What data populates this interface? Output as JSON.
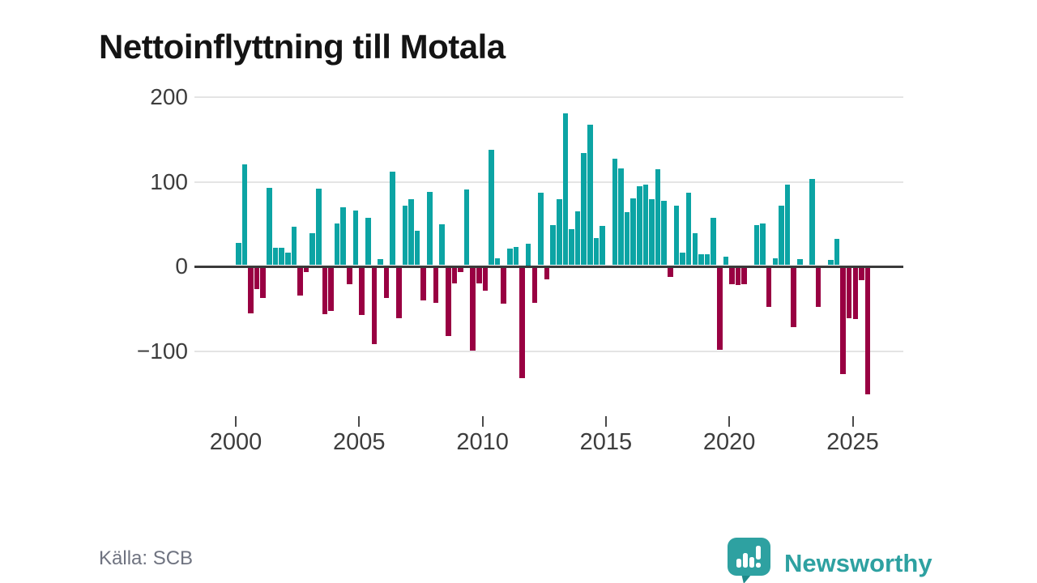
{
  "title": "Nettoinflyttning till Motala",
  "source": "Källa: SCB",
  "brand": {
    "name": "Newsworthy"
  },
  "colors": {
    "positive_bar": "#0ca4a4",
    "negative_bar": "#990042",
    "zero_axis": "#3a3a3a",
    "gridline": "#e4e4e4",
    "logo_teal": "#2ea1a1",
    "logo_teal_dark": "#1f8a8a"
  },
  "chart_data": {
    "type": "bar",
    "title": "Nettoinflyttning till Motala",
    "xlabel": "",
    "ylabel": "",
    "ylim": [
      -175,
      215
    ],
    "grid": "horizontal",
    "legend": "none",
    "bar_color_rule": "teal when positive, dark crimson when negative",
    "yticks": [
      {
        "value": 200,
        "label": "200"
      },
      {
        "value": 100,
        "label": "100"
      },
      {
        "value": 0,
        "label": "0"
      },
      {
        "value": -100,
        "label": "−100"
      }
    ],
    "xticks": [
      {
        "year": 2000,
        "label": "2000"
      },
      {
        "year": 2005,
        "label": "2005"
      },
      {
        "year": 2010,
        "label": "2010"
      },
      {
        "year": 2015,
        "label": "2015"
      },
      {
        "year": 2020,
        "label": "2020"
      },
      {
        "year": 2025,
        "label": "2025"
      }
    ],
    "periods": [
      "2000Q1",
      "2000Q2",
      "2000Q3",
      "2000Q4",
      "2001Q1",
      "2001Q2",
      "2001Q3",
      "2001Q4",
      "2002Q1",
      "2002Q2",
      "2002Q3",
      "2002Q4",
      "2003Q1",
      "2003Q2",
      "2003Q3",
      "2003Q4",
      "2004Q1",
      "2004Q2",
      "2004Q3",
      "2004Q4",
      "2005Q1",
      "2005Q2",
      "2005Q3",
      "2005Q4",
      "2006Q1",
      "2006Q2",
      "2006Q3",
      "2006Q4",
      "2007Q1",
      "2007Q2",
      "2007Q3",
      "2007Q4",
      "2008Q1",
      "2008Q2",
      "2008Q3",
      "2008Q4",
      "2009Q1",
      "2009Q2",
      "2009Q3",
      "2009Q4",
      "2010Q1",
      "2010Q2",
      "2010Q3",
      "2010Q4",
      "2011Q1",
      "2011Q2",
      "2011Q3",
      "2011Q4",
      "2012Q1",
      "2012Q2",
      "2012Q3",
      "2012Q4",
      "2013Q1",
      "2013Q2",
      "2013Q3",
      "2013Q4",
      "2014Q1",
      "2014Q2",
      "2014Q3",
      "2014Q4",
      "2015Q1",
      "2015Q2",
      "2015Q3",
      "2015Q4",
      "2016Q1",
      "2016Q2",
      "2016Q3",
      "2016Q4",
      "2017Q1",
      "2017Q2",
      "2017Q3",
      "2017Q4",
      "2018Q1",
      "2018Q2",
      "2018Q3",
      "2018Q4",
      "2019Q1",
      "2019Q2",
      "2019Q3",
      "2019Q4",
      "2020Q1",
      "2020Q2",
      "2020Q3",
      "2020Q4",
      "2021Q1",
      "2021Q2",
      "2021Q3",
      "2021Q4",
      "2022Q1",
      "2022Q2",
      "2022Q3",
      "2022Q4",
      "2023Q1",
      "2023Q2",
      "2023Q3",
      "2023Q4",
      "2024Q1",
      "2024Q2",
      "2024Q3",
      "2024Q4",
      "2025Q1",
      "2025Q2",
      "2025Q3"
    ],
    "values": [
      26,
      119,
      -54,
      -25,
      -36,
      91,
      21,
      21,
      15,
      45,
      -33,
      -5,
      38,
      90,
      -55,
      -51,
      49,
      68,
      -20,
      65,
      -56,
      56,
      -90,
      7,
      -36,
      111,
      -60,
      70,
      78,
      41,
      -39,
      87,
      -42,
      48,
      -81,
      -19,
      -5,
      89,
      -98,
      -19,
      -27,
      136,
      8,
      -43,
      20,
      22,
      -131,
      25,
      -42,
      86,
      -14,
      47,
      78,
      179,
      43,
      64,
      133,
      166,
      32,
      46,
      0,
      126,
      114,
      63,
      79,
      93,
      95,
      78,
      113,
      76,
      -11,
      70,
      15,
      86,
      38,
      13,
      13,
      56,
      -97,
      10,
      -20,
      -21,
      -20,
      0,
      47,
      49,
      -46,
      8,
      70,
      95,
      -70,
      7,
      0,
      102,
      -46,
      0,
      6,
      31,
      -126,
      -60,
      -61,
      -15,
      -150
    ]
  }
}
